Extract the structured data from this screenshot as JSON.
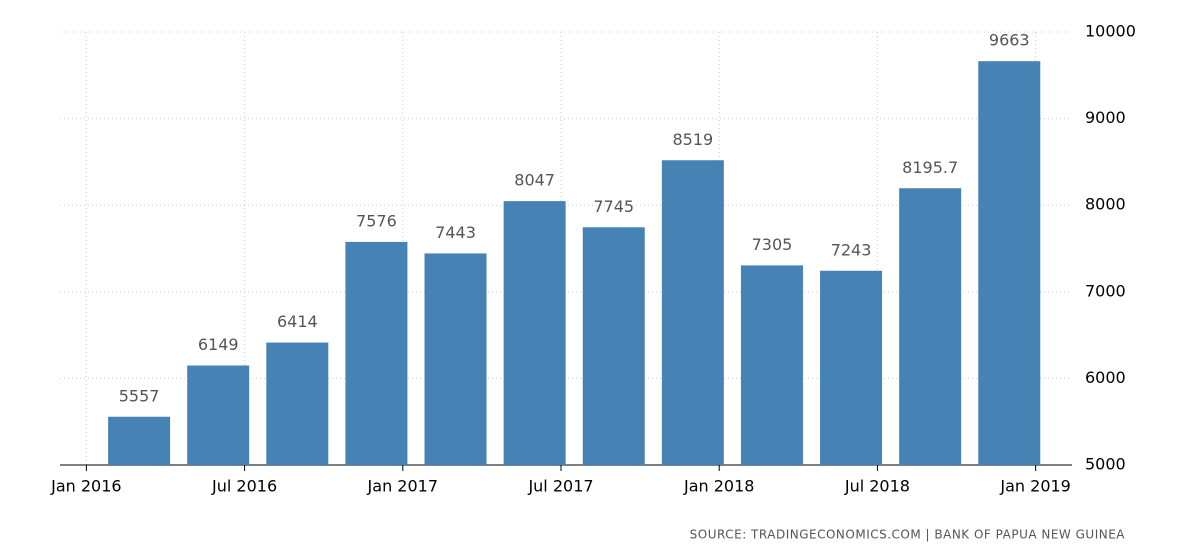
{
  "chart_data": {
    "type": "bar",
    "source": "SOURCE: TRADINGECONOMICS.COM | BANK OF PAPUA NEW GUINEA",
    "x": [
      "2016-03",
      "2016-06",
      "2016-09",
      "2016-12",
      "2017-03",
      "2017-06",
      "2017-09",
      "2017-12",
      "2018-03",
      "2018-06",
      "2018-09",
      "2018-12"
    ],
    "values": [
      5557,
      6149,
      6414,
      7576,
      7443,
      8047,
      7745,
      8519,
      7305,
      7243,
      8195.7,
      9663
    ],
    "color": "#4682b4",
    "xlim": [
      "2015-12",
      "2019-02"
    ],
    "xticks": [
      {
        "value": "2016-01",
        "label": "Jan 2016"
      },
      {
        "value": "2016-07",
        "label": "Jul 2016"
      },
      {
        "value": "2017-01",
        "label": "Jan 2017"
      },
      {
        "value": "2017-07",
        "label": "Jul 2017"
      },
      {
        "value": "2018-01",
        "label": "Jan 2018"
      },
      {
        "value": "2018-07",
        "label": "Jul 2018"
      },
      {
        "value": "2019-01",
        "label": "Jan 2019"
      }
    ],
    "ylim": [
      5000,
      10000
    ],
    "yticks": [
      5000,
      6000,
      7000,
      8000,
      9000,
      10000
    ],
    "grid": true
  }
}
